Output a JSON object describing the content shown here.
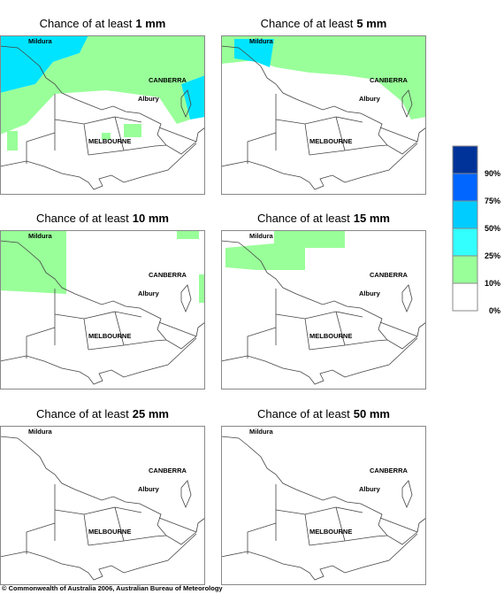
{
  "panels": [
    {
      "title": {
        "prefix": "Chance of at least",
        "amount": "1 mm"
      }
    },
    {
      "title": {
        "prefix": "Chance of at least",
        "amount": "5 mm"
      }
    },
    {
      "title": {
        "prefix": "Chance of at least",
        "amount": "10 mm"
      }
    },
    {
      "title": {
        "prefix": "Chance of at least",
        "amount": "15 mm"
      }
    },
    {
      "title": {
        "prefix": "Chance of at least",
        "amount": "25 mm"
      }
    },
    {
      "title": {
        "prefix": "Chance of at least",
        "amount": "50 mm"
      }
    }
  ],
  "map_labels": [
    "Mildura",
    "CANBERRA",
    "Albury",
    "MELBOURNE"
  ],
  "legend": {
    "labels": [
      "90%",
      "75%",
      "50%",
      "25%",
      "10%",
      "0%"
    ]
  },
  "copyright": "© Commonwealth of Australia 2006, Australian Bureau of Meteorology"
}
